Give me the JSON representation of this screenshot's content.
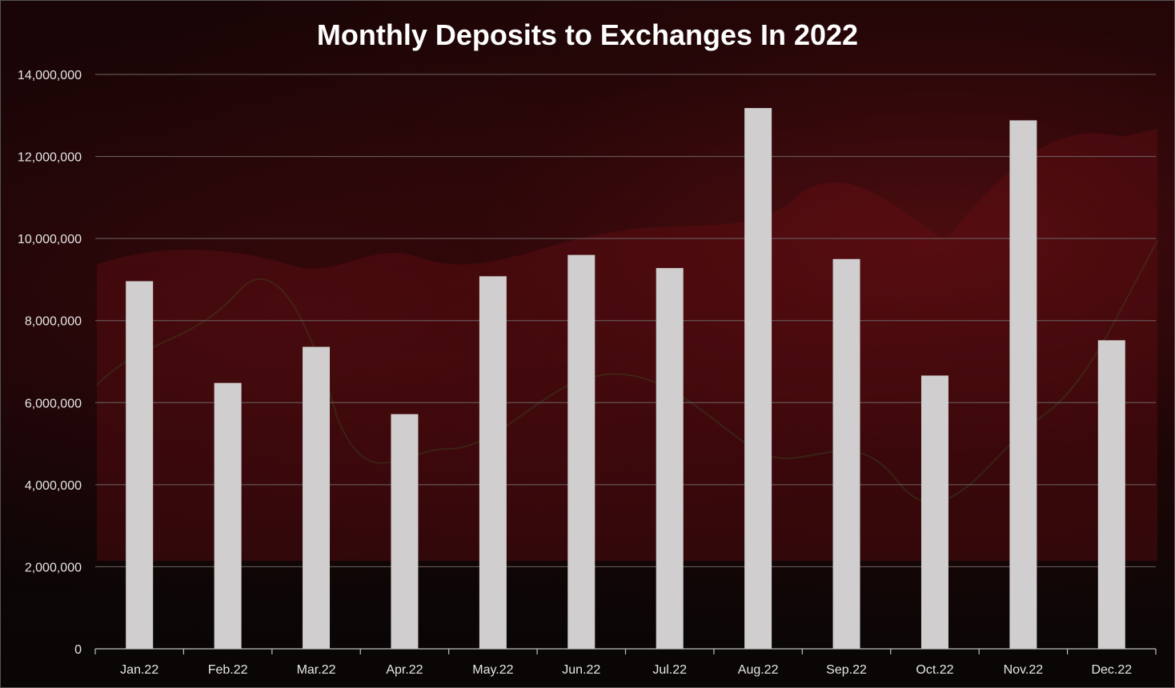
{
  "chart_data": {
    "type": "bar",
    "title": "Monthly Deposits to Exchanges In 2022",
    "xlabel": "",
    "ylabel": "",
    "categories": [
      "Jan.22",
      "Feb.22",
      "Mar.22",
      "Apr.22",
      "May.22",
      "Jun.22",
      "Jul.22",
      "Aug.22",
      "Sep.22",
      "Oct.22",
      "Nov.22",
      "Dec.22"
    ],
    "values": [
      8960000,
      6480000,
      7360000,
      5720000,
      9080000,
      9600000,
      9280000,
      13180000,
      9500000,
      6660000,
      12880000,
      7520000
    ],
    "ylim": [
      0,
      14000000
    ],
    "yticks": [
      "0",
      "2,000,000",
      "4,000,000",
      "6,000,000",
      "8,000,000",
      "10,000,000",
      "12,000,000",
      "14,000,000"
    ],
    "grid": true,
    "legend": "none",
    "colors": {
      "bar": "#d0cece",
      "title": "#ffffff",
      "tick_text": "#e6e6e6"
    }
  }
}
